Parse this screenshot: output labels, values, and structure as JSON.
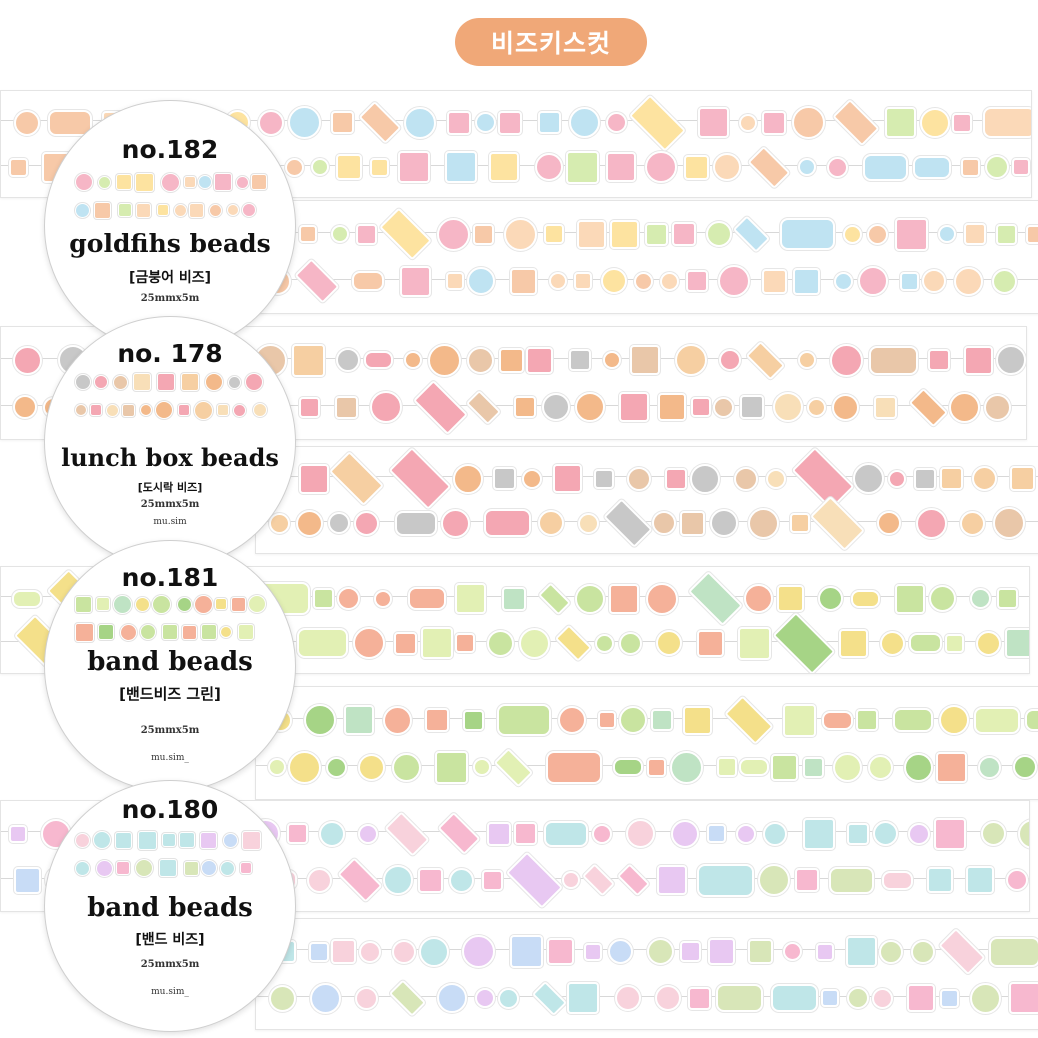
{
  "header": {
    "title": "비즈키스컷",
    "color": "#f0a878"
  },
  "products": [
    {
      "number": "no.182",
      "name": "goldfihs beads",
      "korean_name": "[금붕어 비즈]",
      "size": "25mmx5m",
      "brand": "",
      "palette": [
        "#f7c9a8",
        "#fbd9b8",
        "#bfe3f2",
        "#d6ecb0",
        "#f6b6c6",
        "#fde3a0"
      ]
    },
    {
      "number": "no. 178",
      "name": "lunch box beads",
      "korean_name": "[도시락 비즈]",
      "size": "25mmx5m",
      "brand": "mu.sim",
      "palette": [
        "#f3b98a",
        "#f6cfa2",
        "#f8dfb8",
        "#e9c7a9",
        "#f4a7b3",
        "#c8c8c8"
      ]
    },
    {
      "number": "no.181",
      "name": "band beads",
      "korean_name": "[밴드비즈 그린]",
      "size": "25mmx5m",
      "brand": "mu.sim_",
      "palette": [
        "#c9e4a0",
        "#e2f0b4",
        "#a6d486",
        "#f4e08a",
        "#f5b199",
        "#bfe3c4"
      ]
    },
    {
      "number": "no.180",
      "name": "band beads",
      "korean_name": "[밴드 비즈]",
      "size": "25mmx5m",
      "brand": "mu.sim_",
      "palette": [
        "#f7b8cf",
        "#c8dcf6",
        "#e8c8f2",
        "#bfe6e8",
        "#f8d2dc",
        "#d8e6b8"
      ]
    }
  ]
}
